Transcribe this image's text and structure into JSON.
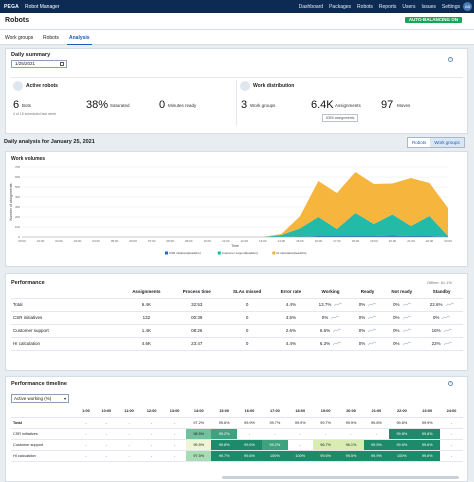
{
  "topbar": {
    "brand": "PEGA",
    "app": "Robot Manager",
    "nav": [
      "Dashboard",
      "Packages",
      "Robots",
      "Reports",
      "Users",
      "Issues",
      "Settings"
    ],
    "avatar": "AB"
  },
  "header": {
    "title": "Robots",
    "badge": "AUTO-BALANCING ON"
  },
  "tabs": [
    "Work groups",
    "Robots",
    "Analysis"
  ],
  "summary": {
    "title": "Daily summary",
    "date": "1/25/2021",
    "active_robots": {
      "title": "Active robots",
      "bots_value": "6",
      "bots_label": "Bots",
      "bots_note": "4 of 15 scheduled last week",
      "saturated_value": "38%",
      "saturated_label": "Saturated",
      "minutes_value": "0",
      "minutes_label": "Minutes ready"
    },
    "work_distribution": {
      "title": "Work distribution",
      "groups_value": "3",
      "groups_label": "Work groups",
      "assign_value": "6.4K",
      "assign_label": "Assignments",
      "moves_value": "97",
      "moves_label": "Moves",
      "tooltip": "6390 assignments"
    }
  },
  "analysis": {
    "title": "Daily analysis for January 25, 2021",
    "toggle": [
      "Robots",
      "Work groups"
    ],
    "selected": "Work groups",
    "chart_title": "Work volumes"
  },
  "chart_data": {
    "type": "area",
    "ylabel": "Number of assignments",
    "xlabel": "Time",
    "x": [
      "00:00",
      "01:00",
      "02:00",
      "03:00",
      "04:00",
      "05:00",
      "06:00",
      "07:00",
      "08:00",
      "09:00",
      "10:00",
      "11:00",
      "12:00",
      "13:00",
      "14:00",
      "15:00",
      "16:00",
      "17:00",
      "18:00",
      "19:00",
      "20:00",
      "21:00",
      "22:00",
      "23:00"
    ],
    "ylim": [
      0,
      700
    ],
    "yticks": [
      0,
      100,
      200,
      300,
      400,
      500,
      600,
      700
    ],
    "stacked": true,
    "series": [
      {
        "name": "CSR initiatives[leadHrs]",
        "color": "#1b6ec2",
        "values": [
          0,
          0,
          0,
          0,
          0,
          0,
          0,
          0,
          0,
          0,
          0,
          0,
          0,
          0,
          0,
          5,
          10,
          10,
          10,
          10,
          15,
          10,
          10,
          5
        ]
      },
      {
        "name": "Customer support[leadHrs]",
        "color": "#17b7a3",
        "values": [
          0,
          0,
          0,
          0,
          0,
          0,
          0,
          0,
          0,
          0,
          0,
          0,
          0,
          0,
          20,
          80,
          190,
          70,
          230,
          120,
          210,
          100,
          200,
          5
        ]
      },
      {
        "name": "HI calculation[leadHrs]",
        "color": "#f6b233",
        "values": [
          0,
          0,
          0,
          0,
          0,
          0,
          0,
          0,
          0,
          0,
          0,
          0,
          0,
          0,
          10,
          120,
          360,
          360,
          410,
          400,
          310,
          480,
          330,
          280
        ]
      }
    ]
  },
  "performance": {
    "title": "Performance",
    "offline": "Offline: 61.1%",
    "columns": [
      "",
      "Assignments",
      "Process time",
      "SLAs missed",
      "Error rate",
      "Working",
      "Ready",
      "Not ready",
      "Standby"
    ],
    "rows": [
      {
        "name": "Total",
        "cells": [
          "6.4K",
          "32:53",
          "0",
          "4.4%",
          "13.7%",
          "0%",
          "0%",
          "22.6%"
        ]
      },
      {
        "name": "CSR initiatives",
        "cells": [
          "132",
          "00:39",
          "0",
          "4.5%",
          "0%",
          "0%",
          "0%",
          "0%"
        ]
      },
      {
        "name": "Customer support",
        "cells": [
          "1.4K",
          "08:26",
          "0",
          "2.6%",
          "6.6%",
          "0%",
          "0%",
          "16%"
        ]
      },
      {
        "name": "HI calculation",
        "cells": [
          "4.6K",
          "23:47",
          "0",
          "4.4%",
          "6.3%",
          "0%",
          "0%",
          "22%"
        ]
      }
    ]
  },
  "timeline": {
    "title": "Performance timeline",
    "filter": "Active working (%)",
    "hours": [
      "1:00",
      "10:00",
      "11:00",
      "12:00",
      "13:00",
      "14:00",
      "15:00",
      "16:00",
      "17:00",
      "18:00",
      "19:00",
      "20:00",
      "21:00",
      "22:00",
      "23:00",
      "24:00"
    ],
    "rows": [
      {
        "name": "Total",
        "cells": [
          "-",
          "-",
          "-",
          "-",
          "-",
          "97.2%",
          "99.6%",
          "99.9%",
          "99.7%",
          "99.9%",
          "99.7%",
          "99.9%",
          "99.8%",
          "99.8%",
          "99.9%",
          "-"
        ]
      },
      {
        "name": "CSR initiatives",
        "cells": [
          "-",
          "-",
          "-",
          "-",
          "-",
          "98.5%",
          "99.2%",
          "-",
          "-",
          "-",
          "-",
          "-",
          "-",
          "99.8%",
          "99.8%",
          "-"
        ]
      },
      {
        "name": "Customer support",
        "cells": [
          "-",
          "-",
          "-",
          "-",
          "-",
          "95.5%",
          "99.8%",
          "99.6%",
          "99.2%",
          "-",
          "96.7%",
          "96.1%",
          "99.5%",
          "99.6%",
          "99.6%",
          "-"
        ]
      },
      {
        "name": "HI calculation",
        "cells": [
          "-",
          "-",
          "-",
          "-",
          "-",
          "97.5%",
          "99.7%",
          "99.6%",
          "100%",
          "100%",
          "99.6%",
          "99.5%",
          "99.9%",
          "100%",
          "99.6%",
          "-"
        ]
      }
    ]
  }
}
